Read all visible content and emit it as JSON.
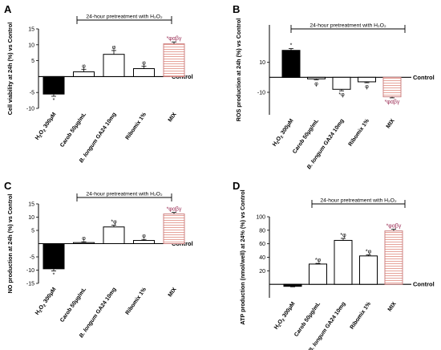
{
  "pretreatment_label": "24-hour pretreatment with H₂O₂",
  "control_label": "Control",
  "categories": [
    "H₂O₂ 300μM",
    "Carob 50μg/mL",
    "B. longum GA24 10mg",
    "Ribomix 1%",
    "MIX"
  ],
  "colors": {
    "h2o2": "#000000",
    "mix_hatch": "#e4998f",
    "mix_border": "#cc8080",
    "mix_label": "#9b2d55"
  },
  "chart_data": [
    {
      "panel": "A",
      "type": "bar",
      "ylabel": "Cell viability at 24h (%) vs Control",
      "ylim": [
        -10,
        15
      ],
      "yticks": [
        -10,
        -5,
        5,
        10,
        15
      ],
      "categories": [
        "H₂O₂ 300μM",
        "Carob 50μg/mL",
        "B. longum GA24 10mg",
        "Ribomix 1%",
        "MIX"
      ],
      "values": [
        -5.5,
        1.5,
        7.0,
        2.5,
        10.3
      ],
      "errors": [
        0.7,
        0.8,
        1.2,
        0.8,
        0.6
      ],
      "annotations": [
        "*",
        "φ",
        "φ",
        "φ",
        "*φαβγ"
      ]
    },
    {
      "panel": "B",
      "type": "bar",
      "ylabel": "ROS production at 24h (%) vs Control",
      "ylim": [
        -25,
        35
      ],
      "yticks": [
        -10,
        10
      ],
      "categories": [
        "H₂O₂ 300μM",
        "Carob 50μg/mL",
        "B. longum GA24 10mg",
        "Ribomix 1%",
        "MIX"
      ],
      "values": [
        18.0,
        -1.0,
        -8.0,
        -3.0,
        -13.0
      ],
      "errors": [
        1.2,
        0.6,
        1.0,
        0.6,
        0.7
      ],
      "annotations": [
        "*",
        "φ",
        "*φ",
        "φ",
        "*φαβγ"
      ]
    },
    {
      "panel": "C",
      "type": "bar",
      "ylabel": "NO production at 24h (%) vs Control",
      "ylim": [
        -15,
        15
      ],
      "yticks": [
        -15,
        -10,
        -5,
        5,
        10,
        15
      ],
      "categories": [
        "H₂O₂ 300μM",
        "Carob 50μg/mL",
        "B. longum GA24 10mg",
        "Ribomix 1%",
        "MIX"
      ],
      "values": [
        -9.5,
        0.4,
        6.3,
        1.2,
        11.2
      ],
      "errors": [
        0.8,
        0.3,
        0.7,
        0.4,
        0.6
      ],
      "annotations": [
        "*",
        "φ",
        "*φ",
        "φ",
        "*φαβγ"
      ]
    },
    {
      "panel": "D",
      "type": "bar",
      "ylabel": "ATP production (nmol/well) at 24% (%) vs Control",
      "ylim": [
        -20,
        100
      ],
      "yticks": [
        20,
        40,
        60,
        80,
        100
      ],
      "categories": [
        "H₂O₂ 300μM",
        "Carob 50μg/mL",
        "B. longum GA24 10mg",
        "Ribomix 1%",
        "MIX"
      ],
      "values": [
        -3.0,
        30.0,
        65.0,
        42.0,
        79.0
      ],
      "errors": [
        0.7,
        1.0,
        3.0,
        1.5,
        2.5
      ],
      "annotations": [
        "",
        "*φ",
        "*φ",
        "*φ",
        "*φαβγ"
      ]
    }
  ]
}
